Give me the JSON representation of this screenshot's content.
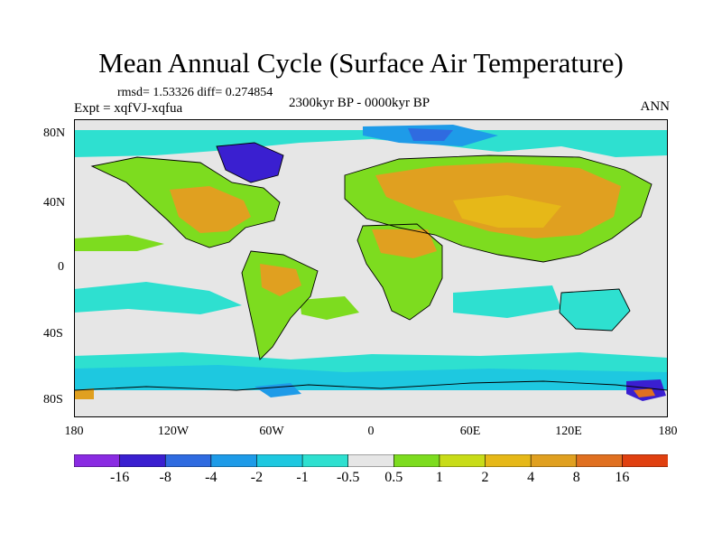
{
  "title": "Mean Annual Cycle (Surface Air Temperature)",
  "stats": "rmsd= 1.53326 diff= 0.274854",
  "experiment": "Expt = xqfVJ-xqfua",
  "period": "2300kyr BP - 0000kyr BP",
  "season": "ANN",
  "lat_labels": [
    "80N",
    "40N",
    "0",
    "40S",
    "80S"
  ],
  "lon_labels": [
    "180",
    "120W",
    "60W",
    "0",
    "60E",
    "120E",
    "180"
  ],
  "colorbar": {
    "labels": [
      "-16",
      "-8",
      "-4",
      "-2",
      "-1",
      "-0.5",
      "0.5",
      "1",
      "2",
      "4",
      "8",
      "16"
    ],
    "colors": [
      "#8a2be2",
      "#3a1fd0",
      "#2f6be0",
      "#1e9be8",
      "#1ec8e0",
      "#2ee0d0",
      "#e6e6e6",
      "#7ddc1f",
      "#c8dc18",
      "#e6b818",
      "#e0a020",
      "#e07020",
      "#e04010"
    ]
  },
  "palette": {
    "neutral": "#e6e6e6",
    "warm1": "#7ddc1f",
    "warm2": "#c8dc18",
    "warm3": "#e6b818",
    "warm4": "#e0a020",
    "cool1": "#2ee0d0",
    "cool2": "#1ec8e0",
    "cool3": "#1e9be8",
    "cool4": "#2f6be0",
    "cool5": "#3a1fd0"
  }
}
